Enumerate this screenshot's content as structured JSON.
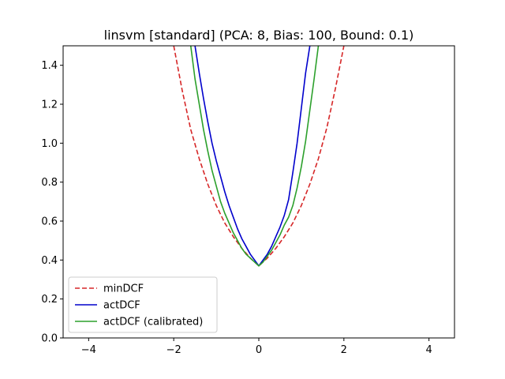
{
  "chart_data": {
    "type": "line",
    "title": "linsvm [standard] (PCA: 8, Bias: 100, Bound: 0.1)",
    "xlabel": "",
    "ylabel": "",
    "xlim": [
      -4.6,
      4.6
    ],
    "ylim": [
      0.0,
      1.5
    ],
    "xticks": [
      -4,
      -2,
      0,
      2,
      4
    ],
    "xtick_labels": [
      "−4",
      "−2",
      "0",
      "2",
      "4"
    ],
    "yticks": [
      0.0,
      0.2,
      0.4,
      0.6,
      0.8,
      1.0,
      1.2,
      1.4
    ],
    "ytick_labels": [
      "0.0",
      "0.2",
      "0.4",
      "0.6",
      "0.8",
      "1.0",
      "1.2",
      "1.4"
    ],
    "grid": false,
    "legend_position": "lower-left",
    "series": [
      {
        "name": "minDCF",
        "color": "#d62728",
        "style": "dashed",
        "x": [
          -2.0,
          -1.8,
          -1.6,
          -1.4,
          -1.2,
          -1.0,
          -0.8,
          -0.6,
          -0.4,
          -0.2,
          0.0,
          0.2,
          0.4,
          0.6,
          0.8,
          1.0,
          1.2,
          1.4,
          1.6,
          1.8,
          2.0
        ],
        "y": [
          1.5,
          1.27,
          1.07,
          0.92,
          0.79,
          0.68,
          0.59,
          0.52,
          0.46,
          0.41,
          0.37,
          0.41,
          0.46,
          0.52,
          0.59,
          0.68,
          0.79,
          0.92,
          1.08,
          1.28,
          1.5
        ]
      },
      {
        "name": "actDCF",
        "color": "#0000cc",
        "style": "solid",
        "x": [
          -1.5,
          -1.4,
          -1.3,
          -1.2,
          -1.1,
          -1.0,
          -0.9,
          -0.8,
          -0.7,
          -0.6,
          -0.5,
          -0.4,
          -0.3,
          -0.2,
          -0.1,
          0.0,
          0.1,
          0.2,
          0.3,
          0.4,
          0.5,
          0.6,
          0.7,
          0.8,
          0.9,
          1.0,
          1.1,
          1.2
        ],
        "y": [
          1.5,
          1.36,
          1.23,
          1.11,
          1.0,
          0.91,
          0.83,
          0.75,
          0.68,
          0.62,
          0.56,
          0.51,
          0.47,
          0.43,
          0.4,
          0.37,
          0.4,
          0.43,
          0.47,
          0.52,
          0.57,
          0.63,
          0.71,
          0.85,
          1.0,
          1.18,
          1.36,
          1.5
        ]
      },
      {
        "name": "actDCF (calibrated)",
        "color": "#2ca02c",
        "style": "solid",
        "x": [
          -1.6,
          -1.5,
          -1.4,
          -1.3,
          -1.2,
          -1.1,
          -1.0,
          -0.9,
          -0.8,
          -0.7,
          -0.6,
          -0.5,
          -0.4,
          -0.3,
          -0.2,
          -0.1,
          0.0,
          0.1,
          0.2,
          0.3,
          0.4,
          0.5,
          0.6,
          0.7,
          0.8,
          0.9,
          1.0,
          1.1,
          1.2,
          1.3,
          1.4
        ],
        "y": [
          1.5,
          1.33,
          1.2,
          1.07,
          0.96,
          0.86,
          0.78,
          0.7,
          0.64,
          0.59,
          0.54,
          0.5,
          0.46,
          0.43,
          0.41,
          0.39,
          0.37,
          0.39,
          0.42,
          0.45,
          0.49,
          0.53,
          0.58,
          0.62,
          0.68,
          0.77,
          0.88,
          1.01,
          1.17,
          1.33,
          1.5
        ]
      }
    ]
  }
}
